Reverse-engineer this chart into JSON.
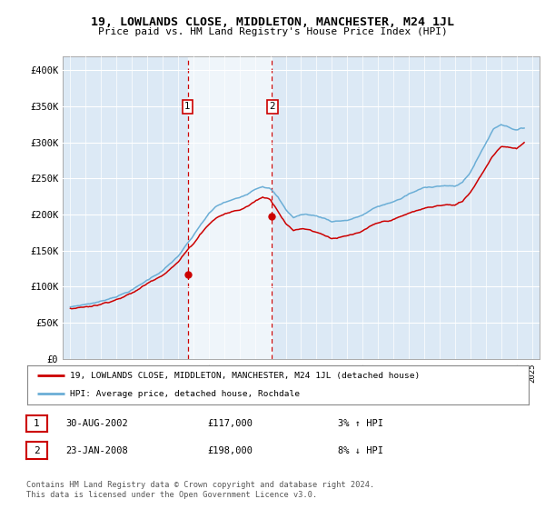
{
  "title": "19, LOWLANDS CLOSE, MIDDLETON, MANCHESTER, M24 1JL",
  "subtitle": "Price paid vs. HM Land Registry's House Price Index (HPI)",
  "legend_line1": "19, LOWLANDS CLOSE, MIDDLETON, MANCHESTER, M24 1JL (detached house)",
  "legend_line2": "HPI: Average price, detached house, Rochdale",
  "sale1_date": "30-AUG-2002",
  "sale1_price": "£117,000",
  "sale1_hpi": "3% ↑ HPI",
  "sale2_date": "23-JAN-2008",
  "sale2_price": "£198,000",
  "sale2_hpi": "8% ↓ HPI",
  "footer": "Contains HM Land Registry data © Crown copyright and database right 2024.\nThis data is licensed under the Open Government Licence v3.0.",
  "background_color": "#ffffff",
  "plot_bg_color": "#dce9f5",
  "highlight_color": "#dceeff",
  "sale1_x": 2002.67,
  "sale2_x": 2008.07,
  "sale1_y": 117000,
  "sale2_y": 198000,
  "ylim_min": 0,
  "ylim_max": 420000,
  "xlim_min": 1994.5,
  "xlim_max": 2025.5,
  "hpi_color": "#6baed6",
  "price_color": "#cc0000",
  "sale_marker_color": "#cc0000",
  "xticks": [
    1995,
    1996,
    1997,
    1998,
    1999,
    2000,
    2001,
    2002,
    2003,
    2004,
    2005,
    2006,
    2007,
    2008,
    2009,
    2010,
    2011,
    2012,
    2013,
    2014,
    2015,
    2016,
    2017,
    2018,
    2019,
    2020,
    2021,
    2022,
    2023,
    2024,
    2025
  ],
  "yticks": [
    0,
    50000,
    100000,
    150000,
    200000,
    250000,
    300000,
    350000,
    400000
  ],
  "ytick_labels": [
    "£0",
    "£50K",
    "£100K",
    "£150K",
    "£200K",
    "£250K",
    "£300K",
    "£350K",
    "£400K"
  ]
}
